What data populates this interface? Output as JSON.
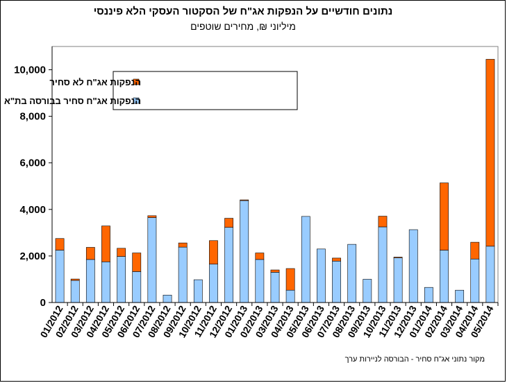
{
  "chart_data": {
    "type": "bar",
    "stacked": true,
    "title": "נתונים חודשיים  על הנפקות אג\"ח של הסקטור העסקי הלא פיננסי",
    "subtitle": "מיליוני  ₪,  מחירים  שוטפים",
    "source": "מקור נתוני אג\"ח סחיר - הבורסה לניירות ערך",
    "categories": [
      "01/2012",
      "02/2012",
      "03/2012",
      "04/2012",
      "05/2012",
      "06/2012",
      "07/2012",
      "08/2012",
      "09/2012",
      "10/2012",
      "11/2012",
      "12/2012",
      "01/2013",
      "02/2013",
      "03/2013",
      "04/2013",
      "05/2013",
      "06/2013",
      "07/2013",
      "08/2013",
      "09/2013",
      "10/2013",
      "11/2013",
      "12/2013",
      "01/2014",
      "02/2014",
      "03/2014",
      "04/2014",
      "05/2014"
    ],
    "series": [
      {
        "name": "הנפקות אג\"ח סחיר בבורסה בת\"א",
        "color": "#99ccff",
        "values": [
          2250,
          950,
          1850,
          1750,
          1980,
          1330,
          3650,
          320,
          2380,
          980,
          1650,
          3230,
          4380,
          1850,
          1300,
          530,
          3700,
          2300,
          1780,
          2500,
          1000,
          3250,
          1920,
          3130,
          650,
          2250,
          530,
          1870,
          2420
        ]
      },
      {
        "name": "הנפקות אג\"ח לא סחיר",
        "color": "#ff6600",
        "values": [
          500,
          60,
          520,
          1540,
          350,
          800,
          80,
          0,
          180,
          0,
          1010,
          390,
          30,
          280,
          100,
          930,
          0,
          0,
          130,
          0,
          0,
          460,
          30,
          0,
          0,
          2890,
          0,
          720,
          8030
        ]
      }
    ],
    "ylim": [
      0,
      11000
    ],
    "yticks": [
      "0",
      "2,000",
      "4,000",
      "6,000",
      "8,000",
      "10,000"
    ],
    "ytick_values": [
      0,
      2000,
      4000,
      6000,
      8000,
      10000
    ],
    "legend_position": "top-left-inside",
    "grid": false
  }
}
